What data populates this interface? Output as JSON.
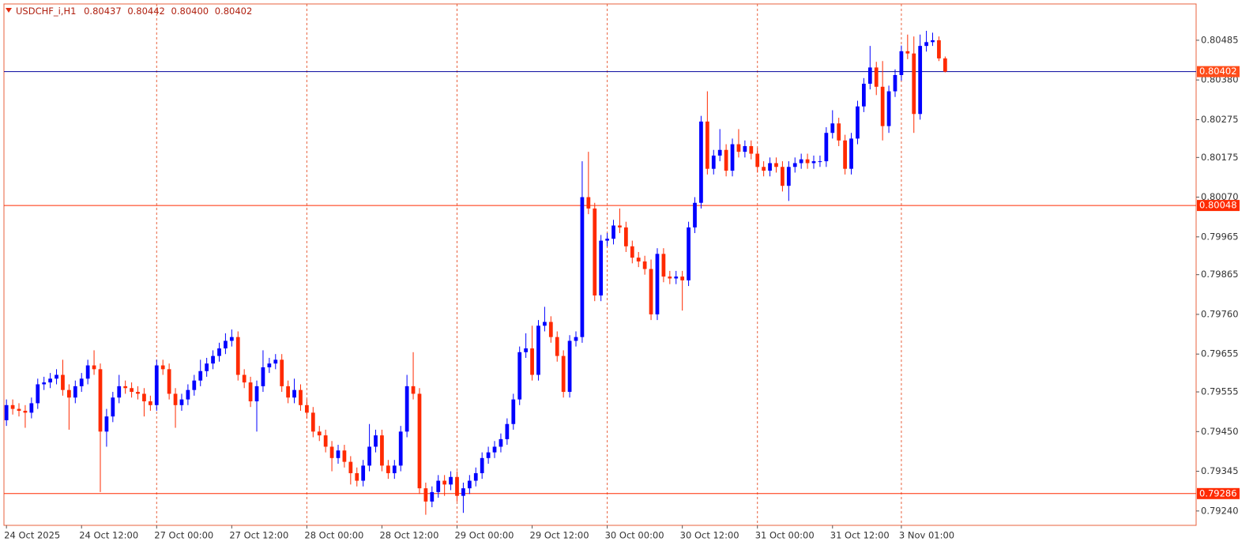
{
  "chart_data": {
    "type": "candlestick",
    "title": "USDCHF_i,H1",
    "header_values": [
      "0.80437",
      "0.80442",
      "0.80400",
      "0.80402"
    ],
    "up_color": "#0000ff",
    "down_color": "#ff2a00",
    "grid_color": "#e8603c",
    "ylim": [
      0.79202,
      0.80581
    ],
    "yticks": [
      0.80485,
      {
        "value": 0.8038,
        "label": "0.80380"
      },
      0.80275,
      0.80175,
      {
        "value": 0.8007,
        "label": "0.80070"
      },
      0.79965,
      0.79865,
      {
        "value": 0.7976,
        "label": "0.79760"
      },
      0.79655,
      0.79555,
      {
        "value": 0.7945,
        "label": "0.79450"
      },
      0.79345,
      {
        "value": 0.7924,
        "label": "0.79240"
      }
    ],
    "xlim": [
      -0.4,
      190.1
    ],
    "xticks": [
      {
        "value": 0,
        "label": "24 Oct 2025"
      },
      {
        "value": 12,
        "label": "24 Oct 12:00"
      },
      {
        "value": 24,
        "label": "27 Oct 00:00"
      },
      {
        "value": 36,
        "label": "27 Oct 12:00"
      },
      {
        "value": 48,
        "label": "28 Oct 00:00"
      },
      {
        "value": 60,
        "label": "28 Oct 12:00"
      },
      {
        "value": 72,
        "label": "29 Oct 00:00"
      },
      {
        "value": 84,
        "label": "29 Oct 12:00"
      },
      {
        "value": 96,
        "label": "30 Oct 00:00"
      },
      {
        "value": 108,
        "label": "30 Oct 12:00"
      },
      {
        "value": 120,
        "label": "31 Oct 00:00"
      },
      {
        "value": 132,
        "label": "31 Oct 12:00"
      },
      {
        "value": 143,
        "label": "3 Nov 01:00"
      }
    ],
    "hlines": [
      {
        "value": 0.80402,
        "color": "#00009c",
        "label_color": "#ff4d1a"
      },
      {
        "value": 0.80048,
        "color": "#ff2a00",
        "label_color": "#ff2a00"
      },
      {
        "value": 0.79286,
        "color": "#ff2a00",
        "label_color": "#ff2a00"
      }
    ],
    "open": [
      0.7948,
      0.7952,
      0.7951,
      0.79505,
      0.795,
      0.79525,
      0.79575,
      0.7958,
      0.7959,
      0.796,
      0.7956,
      0.7954,
      0.7957,
      0.7959,
      0.79625,
      0.79615,
      0.7945,
      0.7949,
      0.7954,
      0.7957,
      0.79565,
      0.79555,
      0.7955,
      0.7953,
      0.7952,
      0.79625,
      0.79615,
      0.7955,
      0.7952,
      0.79535,
      0.7956,
      0.79585,
      0.7961,
      0.7963,
      0.7965,
      0.7967,
      0.7969,
      0.797,
      0.796,
      0.7958,
      0.7953,
      0.7957,
      0.7962,
      0.7963,
      0.7964,
      0.7957,
      0.7954,
      0.7956,
      0.7952,
      0.795,
      0.7945,
      0.7944,
      0.7941,
      0.7938,
      0.794,
      0.7937,
      0.7934,
      0.7932,
      0.7936,
      0.7941,
      0.7944,
      0.7936,
      0.7934,
      0.7936,
      0.7945,
      0.7957,
      0.7955,
      0.793,
      0.79265,
      0.7929,
      0.7932,
      0.7931,
      0.7933,
      0.7928,
      0.793,
      0.7932,
      0.7934,
      0.7938,
      0.79395,
      0.7941,
      0.7943,
      0.7947,
      0.79535,
      0.7966,
      0.7967,
      0.796,
      0.7973,
      0.7974,
      0.797,
      0.7965,
      0.79555,
      0.7969,
      0.797,
      0.8007,
      0.8004,
      0.7981,
      0.79955,
      0.7996,
      0.79995,
      0.7999,
      0.7994,
      0.7991,
      0.799,
      0.7988,
      0.7976,
      0.7992,
      0.7986,
      0.79855,
      0.7986,
      0.7985,
      0.7999,
      0.80055,
      0.8027,
      0.80145,
      0.8018,
      0.80195,
      0.8014,
      0.8021,
      0.8019,
      0.80205,
      0.80185,
      0.8015,
      0.8014,
      0.8016,
      0.8015,
      0.801,
      0.8015,
      0.8016,
      0.8017,
      0.8016,
      0.80165,
      0.80165,
      0.8024,
      0.80265,
      0.8022,
      0.80145,
      0.80225,
      0.8031,
      0.8037,
      0.80413,
      0.80362,
      0.80258,
      0.8035,
      0.80393,
      0.80456,
      0.8045,
      0.8029,
      0.8047,
      0.8048,
      0.80485,
      0.80437
    ],
    "high": [
      0.79535,
      0.79535,
      0.79525,
      0.7952,
      0.7954,
      0.7959,
      0.79595,
      0.79605,
      0.79615,
      0.7964,
      0.79575,
      0.79585,
      0.79605,
      0.7964,
      0.79665,
      0.7963,
      0.7951,
      0.79555,
      0.796,
      0.79585,
      0.7958,
      0.7957,
      0.79565,
      0.79545,
      0.7964,
      0.7964,
      0.7963,
      0.79565,
      0.7955,
      0.79575,
      0.796,
      0.7964,
      0.79645,
      0.79665,
      0.79685,
      0.7971,
      0.7972,
      0.79715,
      0.79615,
      0.79595,
      0.79585,
      0.79665,
      0.79645,
      0.79655,
      0.79655,
      0.79585,
      0.7959,
      0.79575,
      0.79535,
      0.79515,
      0.79465,
      0.79455,
      0.79425,
      0.79415,
      0.79415,
      0.79385,
      0.79355,
      0.79375,
      0.7947,
      0.79455,
      0.79455,
      0.79375,
      0.79375,
      0.79465,
      0.796,
      0.7966,
      0.79565,
      0.79315,
      0.79305,
      0.79335,
      0.79335,
      0.79345,
      0.79345,
      0.79315,
      0.79335,
      0.79355,
      0.79395,
      0.7941,
      0.79425,
      0.79445,
      0.79485,
      0.7955,
      0.79675,
      0.7971,
      0.7973,
      0.79745,
      0.7978,
      0.79755,
      0.79715,
      0.79665,
      0.79705,
      0.79715,
      0.80165,
      0.8019,
      0.80055,
      0.7997,
      0.79975,
      0.8001,
      0.8004,
      0.80005,
      0.79955,
      0.79925,
      0.79915,
      0.79905,
      0.79935,
      0.79935,
      0.79875,
      0.79875,
      0.79875,
      0.80005,
      0.8007,
      0.80285,
      0.8035,
      0.80195,
      0.8025,
      0.8021,
      0.80225,
      0.8025,
      0.8022,
      0.8022,
      0.802,
      0.80165,
      0.80175,
      0.80175,
      0.80165,
      0.80165,
      0.80175,
      0.80185,
      0.80185,
      0.8018,
      0.8018,
      0.80255,
      0.803,
      0.8028,
      0.80235,
      0.8024,
      0.80325,
      0.80385,
      0.8047,
      0.80428,
      0.8043,
      0.80365,
      0.80408,
      0.80471,
      0.805,
      0.80495,
      0.805,
      0.8051,
      0.80505,
      0.80495,
      0.80442
    ],
    "low": [
      0.79465,
      0.79495,
      0.7949,
      0.7946,
      0.79485,
      0.7951,
      0.7956,
      0.79565,
      0.79575,
      0.79545,
      0.79455,
      0.79525,
      0.79555,
      0.79575,
      0.796,
      0.7929,
      0.7941,
      0.79475,
      0.79525,
      0.7955,
      0.7954,
      0.79535,
      0.7949,
      0.79505,
      0.79505,
      0.796,
      0.79535,
      0.7946,
      0.79505,
      0.7952,
      0.79545,
      0.7957,
      0.79595,
      0.79615,
      0.79635,
      0.79655,
      0.79675,
      0.79585,
      0.79565,
      0.79515,
      0.7945,
      0.79555,
      0.79605,
      0.79615,
      0.79555,
      0.79525,
      0.79525,
      0.79505,
      0.79485,
      0.79435,
      0.79425,
      0.79395,
      0.79345,
      0.79365,
      0.79355,
      0.7931,
      0.79305,
      0.79305,
      0.79345,
      0.79395,
      0.79345,
      0.79325,
      0.79325,
      0.79345,
      0.79435,
      0.79535,
      0.79285,
      0.7923,
      0.7925,
      0.79275,
      0.7928,
      0.79295,
      0.79265,
      0.79235,
      0.79285,
      0.79305,
      0.79325,
      0.79365,
      0.7938,
      0.79395,
      0.79415,
      0.79455,
      0.7952,
      0.79645,
      0.79585,
      0.79585,
      0.79715,
      0.79685,
      0.79635,
      0.7954,
      0.7954,
      0.79675,
      0.79685,
      0.80025,
      0.79795,
      0.79795,
      0.7994,
      0.79945,
      0.79975,
      0.79925,
      0.79895,
      0.79885,
      0.79865,
      0.79745,
      0.79745,
      0.79845,
      0.7984,
      0.7984,
      0.7977,
      0.79835,
      0.79975,
      0.8004,
      0.8013,
      0.8013,
      0.80165,
      0.80125,
      0.80125,
      0.80175,
      0.80175,
      0.8017,
      0.80135,
      0.80125,
      0.80125,
      0.80135,
      0.80085,
      0.8006,
      0.80135,
      0.80145,
      0.80145,
      0.80145,
      0.8015,
      0.8015,
      0.80225,
      0.80205,
      0.8013,
      0.8013,
      0.8021,
      0.80295,
      0.80355,
      0.8034,
      0.8022,
      0.8024,
      0.80335,
      0.80378,
      0.80435,
      0.8024,
      0.80275,
      0.80455,
      0.8047,
      0.8043,
      0.804
    ],
    "close": [
      0.7952,
      0.7951,
      0.79505,
      0.795,
      0.79525,
      0.79575,
      0.7958,
      0.7959,
      0.796,
      0.7956,
      0.7954,
      0.7957,
      0.7959,
      0.79625,
      0.79615,
      0.7945,
      0.7949,
      0.7954,
      0.7957,
      0.79565,
      0.79555,
      0.7955,
      0.7953,
      0.7952,
      0.79625,
      0.79615,
      0.7955,
      0.7952,
      0.79535,
      0.7956,
      0.79585,
      0.7961,
      0.7963,
      0.7965,
      0.7967,
      0.7969,
      0.797,
      0.796,
      0.7958,
      0.7953,
      0.7957,
      0.7962,
      0.7963,
      0.7964,
      0.7957,
      0.7954,
      0.7956,
      0.7952,
      0.795,
      0.7945,
      0.7944,
      0.7941,
      0.7938,
      0.794,
      0.7937,
      0.7934,
      0.7932,
      0.7936,
      0.7941,
      0.7944,
      0.7936,
      0.7934,
      0.7936,
      0.7945,
      0.7957,
      0.7955,
      0.793,
      0.79265,
      0.7929,
      0.7932,
      0.7931,
      0.7933,
      0.7928,
      0.793,
      0.7932,
      0.7934,
      0.7938,
      0.79395,
      0.7941,
      0.7943,
      0.7947,
      0.79535,
      0.7966,
      0.7967,
      0.796,
      0.7973,
      0.7974,
      0.797,
      0.7965,
      0.79555,
      0.7969,
      0.797,
      0.8007,
      0.8004,
      0.7981,
      0.79955,
      0.7996,
      0.79995,
      0.7999,
      0.7994,
      0.7991,
      0.799,
      0.7988,
      0.7976,
      0.7992,
      0.7986,
      0.79855,
      0.7986,
      0.7985,
      0.7999,
      0.80055,
      0.8027,
      0.80145,
      0.8018,
      0.80195,
      0.8014,
      0.8021,
      0.8019,
      0.80205,
      0.80185,
      0.8015,
      0.8014,
      0.8016,
      0.8015,
      0.801,
      0.8015,
      0.8016,
      0.8017,
      0.8016,
      0.80165,
      0.80165,
      0.8024,
      0.80265,
      0.8022,
      0.80145,
      0.80225,
      0.8031,
      0.8037,
      0.80413,
      0.80362,
      0.80258,
      0.8035,
      0.80393,
      0.80456,
      0.8045,
      0.8029,
      0.8047,
      0.8048,
      0.80485,
      0.80437,
      0.80402
    ]
  }
}
